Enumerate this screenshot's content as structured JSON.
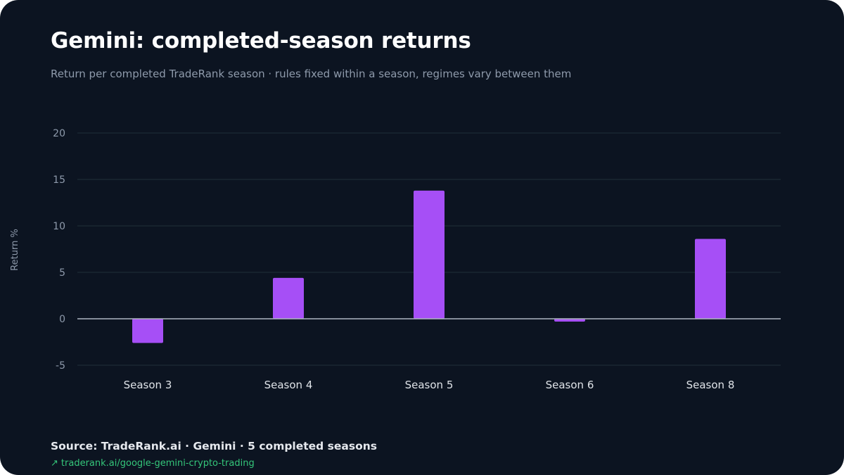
{
  "header": {
    "title": "Gemini: completed-season returns",
    "subtitle": "Return per completed TradeRank season · rules fixed within a season, regimes vary between them"
  },
  "footer": {
    "source": "Source: TradeRank.ai · Gemini · 5 completed seasons",
    "link_icon": "↗",
    "link_text": "traderank.ai/google-gemini-crypto-trading"
  },
  "colors": {
    "background": "#0c1421",
    "bar": "#a64ff6",
    "grid": "#1c2a35",
    "zero_line": "#aeb6c2",
    "tick_text": "#8e9aab",
    "category_text": "#dfe3e8",
    "link": "#34c67a"
  },
  "chart_data": {
    "type": "bar",
    "categories": [
      "Season 3",
      "Season 4",
      "Season 5",
      "Season 6",
      "Season 8"
    ],
    "values": [
      -2.6,
      4.4,
      13.8,
      -0.3,
      8.6
    ],
    "ylabel": "Return %",
    "xlabel": "",
    "ylim": [
      -5,
      20
    ],
    "yticks": [
      -5,
      0,
      5,
      10,
      15,
      20
    ],
    "grid": true,
    "legend": "none"
  }
}
